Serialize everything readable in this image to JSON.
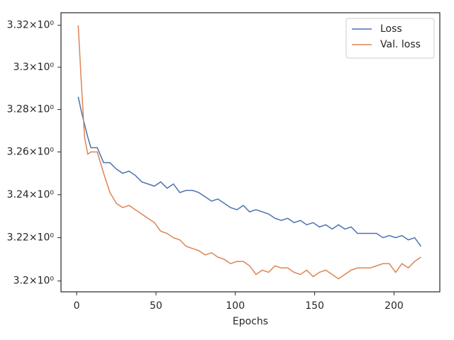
{
  "chart_data": {
    "type": "line",
    "xlabel": "Epochs",
    "log_y": true,
    "legend": "upper right",
    "x": [
      1,
      3,
      5,
      7,
      9,
      13,
      17,
      21,
      25,
      29,
      33,
      37,
      41,
      45,
      49,
      53,
      57,
      61,
      65,
      69,
      73,
      77,
      81,
      85,
      89,
      93,
      97,
      101,
      105,
      109,
      113,
      117,
      121,
      125,
      129,
      133,
      137,
      141,
      145,
      149,
      153,
      157,
      161,
      165,
      169,
      173,
      177,
      181,
      185,
      189,
      193,
      197,
      201,
      205,
      209,
      213,
      217
    ],
    "series": [
      {
        "name": "Loss",
        "color": "#4c72b0",
        "values": [
          3.286,
          3.279,
          3.273,
          3.267,
          3.262,
          3.262,
          3.255,
          3.255,
          3.252,
          3.25,
          3.251,
          3.249,
          3.246,
          3.245,
          3.244,
          3.246,
          3.243,
          3.245,
          3.241,
          3.242,
          3.242,
          3.241,
          3.239,
          3.237,
          3.238,
          3.236,
          3.234,
          3.233,
          3.235,
          3.232,
          3.233,
          3.232,
          3.231,
          3.229,
          3.228,
          3.229,
          3.227,
          3.228,
          3.226,
          3.227,
          3.225,
          3.226,
          3.224,
          3.226,
          3.224,
          3.225,
          3.222,
          3.222,
          3.222,
          3.222,
          3.22,
          3.221,
          3.22,
          3.221,
          3.219,
          3.22,
          3.216
        ]
      },
      {
        "name": "Val. loss",
        "color": "#dd8452",
        "values": [
          3.32,
          3.292,
          3.267,
          3.259,
          3.26,
          3.26,
          3.25,
          3.241,
          3.236,
          3.234,
          3.235,
          3.233,
          3.231,
          3.229,
          3.227,
          3.223,
          3.222,
          3.22,
          3.219,
          3.216,
          3.215,
          3.214,
          3.212,
          3.213,
          3.211,
          3.21,
          3.208,
          3.209,
          3.209,
          3.207,
          3.203,
          3.205,
          3.204,
          3.207,
          3.206,
          3.206,
          3.204,
          3.203,
          3.205,
          3.202,
          3.204,
          3.205,
          3.203,
          3.201,
          3.203,
          3.205,
          3.206,
          3.206,
          3.206,
          3.207,
          3.208,
          3.208,
          3.204,
          3.208,
          3.206,
          3.209,
          3.211
        ]
      }
    ],
    "xlim": [
      -9.85,
      228.85
    ],
    "xticks": [
      0,
      50,
      100,
      150,
      200
    ],
    "ylim": [
      3.195,
      3.326
    ],
    "yticks": [
      {
        "value": 3.2,
        "label": "3.2×10⁰"
      },
      {
        "value": 3.22,
        "label": "3.22×10⁰"
      },
      {
        "value": 3.24,
        "label": "3.24×10⁰"
      },
      {
        "value": 3.26,
        "label": "3.26×10⁰"
      },
      {
        "value": 3.28,
        "label": "3.28×10⁰"
      },
      {
        "value": 3.3,
        "label": "3.3×10⁰"
      },
      {
        "value": 3.32,
        "label": "3.32×10⁰"
      }
    ]
  }
}
